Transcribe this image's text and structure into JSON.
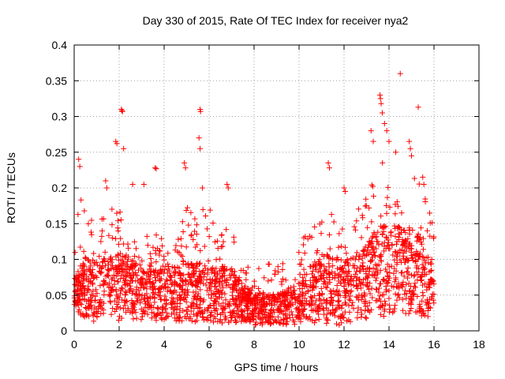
{
  "chart_data": {
    "type": "scatter",
    "title": "Day 330 of 2015, Rate Of TEC Index for receiver nya2",
    "xlabel": "GPS time / hours",
    "ylabel": "ROTI / TECUs",
    "xlim": [
      0,
      18
    ],
    "ylim": [
      0,
      0.4
    ],
    "xticks": [
      "0",
      "2",
      "4",
      "6",
      "8",
      "10",
      "12",
      "14",
      "16",
      "18"
    ],
    "yticks": [
      "0",
      "0.05",
      "0.1",
      "0.15",
      "0.2",
      "0.25",
      "0.3",
      "0.35",
      "0.4"
    ],
    "grid": true,
    "marker": "+",
    "color": "#ff0000",
    "series": [
      {
        "name": "ROTI",
        "envelope": {
          "x": [
            0,
            0.5,
            1,
            1.5,
            2,
            2.5,
            3,
            3.5,
            4,
            4.5,
            5,
            5.5,
            6,
            6.5,
            7,
            7.5,
            8,
            8.5,
            9,
            9.5,
            10,
            10.5,
            11,
            11.5,
            12,
            12.5,
            13,
            13.5,
            14,
            14.5,
            15,
            15.5,
            16
          ],
          "y_low": [
            0.03,
            0.015,
            0.012,
            0.012,
            0.015,
            0.015,
            0.015,
            0.015,
            0.012,
            0.012,
            0.012,
            0.012,
            0.01,
            0.01,
            0.01,
            0.008,
            0.008,
            0.008,
            0.008,
            0.008,
            0.008,
            0.008,
            0.008,
            0.008,
            0.008,
            0.01,
            0.015,
            0.02,
            0.02,
            0.02,
            0.025,
            0.02,
            0.02
          ],
          "y_typ": [
            0.06,
            0.07,
            0.065,
            0.07,
            0.075,
            0.07,
            0.065,
            0.06,
            0.06,
            0.06,
            0.065,
            0.065,
            0.06,
            0.06,
            0.06,
            0.045,
            0.035,
            0.035,
            0.035,
            0.04,
            0.045,
            0.06,
            0.07,
            0.07,
            0.065,
            0.07,
            0.08,
            0.1,
            0.1,
            0.1,
            0.1,
            0.09,
            0.06
          ],
          "y_high": [
            0.16,
            0.2,
            0.14,
            0.2,
            0.17,
            0.17,
            0.15,
            0.14,
            0.13,
            0.12,
            0.18,
            0.15,
            0.2,
            0.14,
            0.16,
            0.1,
            0.09,
            0.1,
            0.1,
            0.1,
            0.12,
            0.15,
            0.19,
            0.17,
            0.14,
            0.18,
            0.2,
            0.25,
            0.22,
            0.2,
            0.22,
            0.2,
            0.15
          ]
        },
        "spikes": [
          {
            "x": 0.2,
            "y": 0.24
          },
          {
            "x": 0.25,
            "y": 0.23
          },
          {
            "x": 1.4,
            "y": 0.21
          },
          {
            "x": 1.45,
            "y": 0.2
          },
          {
            "x": 1.85,
            "y": 0.265
          },
          {
            "x": 1.9,
            "y": 0.262
          },
          {
            "x": 2.1,
            "y": 0.31
          },
          {
            "x": 2.12,
            "y": 0.308
          },
          {
            "x": 2.15,
            "y": 0.307
          },
          {
            "x": 2.2,
            "y": 0.255
          },
          {
            "x": 2.6,
            "y": 0.205
          },
          {
            "x": 3.1,
            "y": 0.205
          },
          {
            "x": 3.6,
            "y": 0.228
          },
          {
            "x": 3.65,
            "y": 0.227
          },
          {
            "x": 4.9,
            "y": 0.235
          },
          {
            "x": 4.95,
            "y": 0.228
          },
          {
            "x": 5.6,
            "y": 0.31
          },
          {
            "x": 5.62,
            "y": 0.307
          },
          {
            "x": 5.55,
            "y": 0.27
          },
          {
            "x": 5.6,
            "y": 0.255
          },
          {
            "x": 5.7,
            "y": 0.2
          },
          {
            "x": 6.8,
            "y": 0.205
          },
          {
            "x": 6.85,
            "y": 0.2
          },
          {
            "x": 11.3,
            "y": 0.235
          },
          {
            "x": 11.35,
            "y": 0.228
          },
          {
            "x": 12.0,
            "y": 0.2
          },
          {
            "x": 12.05,
            "y": 0.195
          },
          {
            "x": 13.2,
            "y": 0.28
          },
          {
            "x": 13.3,
            "y": 0.265
          },
          {
            "x": 13.6,
            "y": 0.33
          },
          {
            "x": 13.62,
            "y": 0.325
          },
          {
            "x": 13.65,
            "y": 0.318
          },
          {
            "x": 13.7,
            "y": 0.305
          },
          {
            "x": 13.8,
            "y": 0.29
          },
          {
            "x": 13.9,
            "y": 0.28
          },
          {
            "x": 14.0,
            "y": 0.265
          },
          {
            "x": 14.3,
            "y": 0.25
          },
          {
            "x": 14.5,
            "y": 0.36
          },
          {
            "x": 14.9,
            "y": 0.265
          },
          {
            "x": 14.95,
            "y": 0.255
          },
          {
            "x": 15.0,
            "y": 0.245
          },
          {
            "x": 15.3,
            "y": 0.313
          },
          {
            "x": 15.5,
            "y": 0.215
          },
          {
            "x": 15.55,
            "y": 0.205
          },
          {
            "x": 15.7,
            "y": 0.14
          },
          {
            "x": 15.9,
            "y": 0.1
          }
        ]
      }
    ]
  }
}
